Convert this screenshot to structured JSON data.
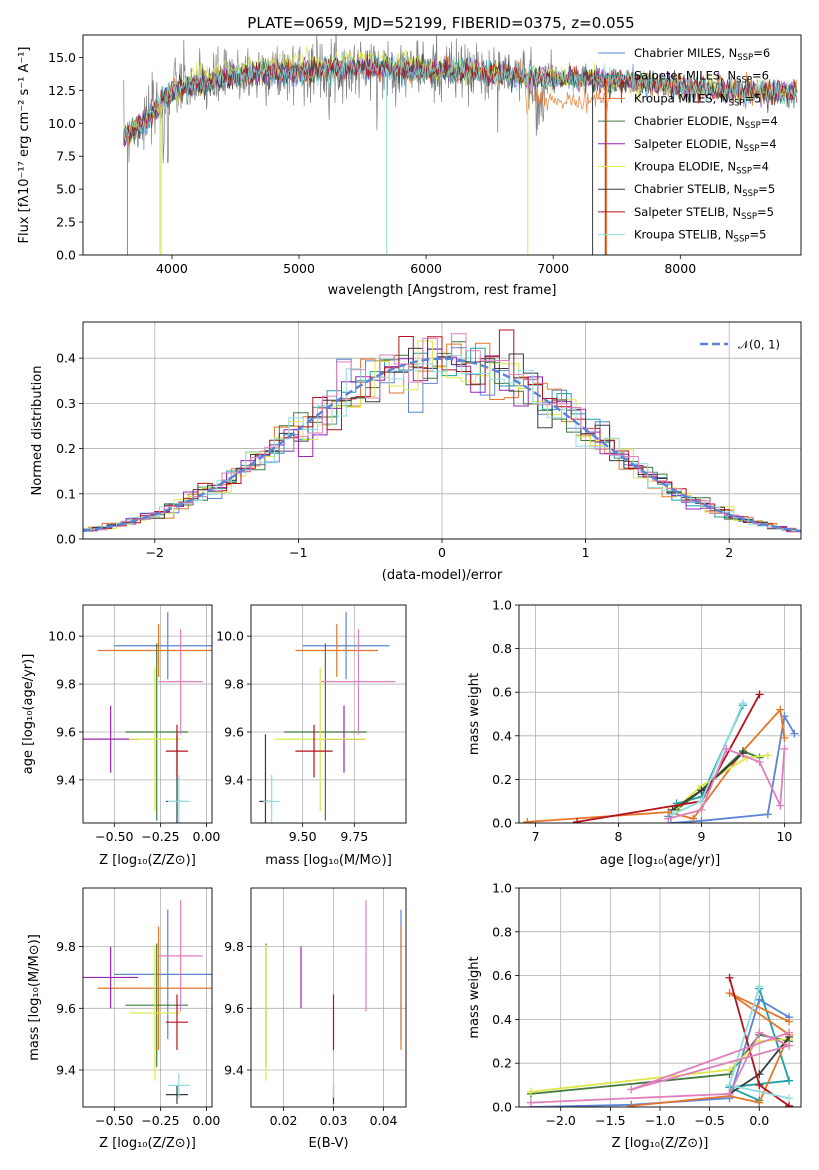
{
  "figure": {
    "title": "PLATE=0659, MJD=52199, FIBERID=0375, z=0.055"
  },
  "models": [
    {
      "name": "Chabrier MILES",
      "nssp": "6",
      "color": "#5b84d6"
    },
    {
      "name": "Salpeter MILES",
      "nssp": "6",
      "color": "#18a1a8"
    },
    {
      "name": "Kroupa MILES",
      "nssp": "5",
      "color": "#e37629"
    },
    {
      "name": "Chabrier ELODIE",
      "nssp": "4",
      "color": "#3f7a3f"
    },
    {
      "name": "Salpeter ELODIE",
      "nssp": "4",
      "color": "#9b25b5"
    },
    {
      "name": "Kroupa ELODIE",
      "nssp": "4",
      "color": "#dce84a"
    },
    {
      "name": "Chabrier STELIB",
      "nssp": "5",
      "color": "#3a3a3a"
    },
    {
      "name": "Salpeter STELIB",
      "nssp": "5",
      "color": "#b5121b"
    },
    {
      "name": "Kroupa STELIB",
      "nssp": "5",
      "color": "#8fdde0"
    }
  ],
  "legend_nssp_prefix": "N",
  "legend_nssp_sub": "SSP",
  "colors": {
    "data": "#808080",
    "gauss": "#5b84d6",
    "pink": "#e07fbc",
    "grid": "#b0b0b0"
  },
  "chart_data": [
    {
      "id": "spectrum",
      "type": "line",
      "xlabel": "wavelength [Angstrom, rest frame]",
      "ylabel": "Flux [fλ10⁻¹⁷ erg cm⁻² s⁻¹ A⁻¹]",
      "xlim": [
        3300,
        8950
      ],
      "ylim": [
        0,
        16.7
      ],
      "xticks": [
        4000,
        5000,
        6000,
        7000,
        8000
      ],
      "yticks": [
        0.0,
        2.5,
        5.0,
        7.5,
        10.0,
        12.5,
        15.0
      ],
      "data_range": [
        3620,
        8920
      ],
      "continuum": [
        [
          3620,
          9.0
        ],
        [
          3800,
          10.2
        ],
        [
          4000,
          12.5
        ],
        [
          4500,
          13.6
        ],
        [
          5000,
          14.0
        ],
        [
          5500,
          14.2
        ],
        [
          6000,
          14.1
        ],
        [
          6500,
          13.8
        ],
        [
          7000,
          13.4
        ],
        [
          7500,
          13.3
        ],
        [
          8000,
          12.7
        ],
        [
          8500,
          12.4
        ],
        [
          8920,
          12.3
        ]
      ]
    },
    {
      "id": "residuals",
      "type": "histogram",
      "xlabel": "(data-model)/error",
      "ylabel": "Normed distribution",
      "xlim": [
        -2.5,
        2.5
      ],
      "ylim": [
        0,
        0.48
      ],
      "xticks": [
        -2,
        -1,
        0,
        1,
        2
      ],
      "yticks": [
        0.0,
        0.1,
        0.2,
        0.3,
        0.4
      ],
      "legend": "𝒩(0, 1)"
    },
    {
      "id": "z-age",
      "type": "scatter",
      "xlabel": "Z [log₁₀(Z/Z⊙)]",
      "ylabel": "age  [log₁₀(age/yr)]",
      "xlim": [
        -0.67,
        0.03
      ],
      "ylim": [
        9.22,
        10.13
      ],
      "xticks": [
        -0.5,
        -0.25,
        0.0
      ],
      "xticklabels": [
        "−0.50",
        "−0.25",
        "0.00"
      ],
      "yticks": [
        9.4,
        9.6,
        9.8,
        10.0
      ]
    },
    {
      "id": "mass-age",
      "type": "scatter",
      "xlabel": "mass [log₁₀(M/M⊙)]",
      "ylabel": "",
      "xlim": [
        9.25,
        10.0
      ],
      "ylim": [
        9.22,
        10.13
      ],
      "xticks": [
        9.5,
        9.75
      ],
      "xticklabels": [
        "9.50",
        "9.75"
      ],
      "yticks": [
        9.4,
        9.6,
        9.8,
        10.0
      ]
    },
    {
      "id": "age-weight",
      "type": "line",
      "xlabel": "age  [log₁₀(age/yr)]",
      "ylabel": "mass weight",
      "xlim": [
        6.8,
        10.2
      ],
      "ylim": [
        0,
        1.0
      ],
      "xticks": [
        7,
        8,
        9,
        10
      ],
      "yticks": [
        0.0,
        0.2,
        0.4,
        0.6,
        0.8,
        1.0
      ]
    },
    {
      "id": "z-mass",
      "type": "scatter",
      "xlabel": "Z [log₁₀(Z/Z⊙)]",
      "ylabel": "mass [log₁₀(M/M⊙)]",
      "xlim": [
        -0.67,
        0.03
      ],
      "ylim": [
        9.28,
        9.99
      ],
      "xticks": [
        -0.5,
        -0.25,
        0.0
      ],
      "xticklabels": [
        "−0.50",
        "−0.25",
        "0.00"
      ],
      "yticks": [
        9.4,
        9.6,
        9.8
      ]
    },
    {
      "id": "ebv-mass",
      "type": "scatter",
      "xlabel": "E(B-V)",
      "ylabel": "",
      "xlim": [
        0.0135,
        0.0445
      ],
      "ylim": [
        9.28,
        9.99
      ],
      "xticks": [
        0.02,
        0.03,
        0.04
      ],
      "xticklabels": [
        "0.02",
        "0.03",
        "0.04"
      ],
      "yticks": [
        9.4,
        9.6,
        9.8
      ]
    },
    {
      "id": "z-weight",
      "type": "line",
      "xlabel": "Z [log₁₀(Z/Z⊙)]",
      "ylabel": "mass weight",
      "xlim": [
        -2.42,
        0.42
      ],
      "ylim": [
        0,
        1.0
      ],
      "xticks": [
        -2.0,
        -1.5,
        -1.0,
        -0.5,
        0.0
      ],
      "xticklabels": [
        "−2.0",
        "−1.5",
        "−1.0",
        "−0.5",
        "0.0"
      ],
      "yticks": [
        0.0,
        0.2,
        0.4,
        0.6,
        0.8,
        1.0
      ]
    }
  ],
  "properties": [
    {
      "model": 0,
      "z": -0.21,
      "zerr": 0.29,
      "age": 9.96,
      "ageErr": 0.14,
      "mass": 9.71,
      "massErr": 0.21,
      "ebv": 0.0435
    },
    {
      "model": 2,
      "z": -0.26,
      "zerr": 0.33,
      "age": 9.94,
      "ageErr": 0.11,
      "mass": 9.665,
      "massErr": 0.2,
      "ebv": 0.0435
    },
    {
      "model": 3,
      "z": -0.27,
      "zerr": 0.17,
      "age": 9.6,
      "ageErr": 0.37,
      "mass": 9.61,
      "massErr": 0.2,
      "ebv": 0.0165
    },
    {
      "model": 4,
      "z": -0.52,
      "zerr": 0.15,
      "age": 9.57,
      "ageErr": 0.14,
      "mass": 9.7,
      "massErr": 0.1,
      "ebv": 0.0235
    },
    {
      "model": 5,
      "z": -0.28,
      "zerr": 0.14,
      "age": 9.57,
      "ageErr": 0.3,
      "mass": 9.585,
      "massErr": 0.22,
      "ebv": 0.0165
    },
    {
      "model": 6,
      "z": -0.16,
      "zerr": 0.06,
      "age": 9.31,
      "ageErr": 0.28,
      "mass": 9.32,
      "massErr": 0.03,
      "ebv": 0.03
    },
    {
      "model": 7,
      "z": -0.16,
      "zerr": 0.06,
      "age": 9.52,
      "ageErr": 0.11,
      "mass": 9.555,
      "massErr": 0.09,
      "ebv": 0.03
    },
    {
      "model": 8,
      "z": -0.15,
      "zerr": 0.06,
      "age": 9.31,
      "ageErr": 0.11,
      "mass": 9.35,
      "massErr": 0.04,
      "ebv": 0.03
    },
    {
      "model": -1,
      "z": -0.14,
      "zerr": 0.12,
      "age": 9.81,
      "ageErr": 0.22,
      "mass": 9.77,
      "massErr": 0.18,
      "ebv": 0.0365
    }
  ],
  "weights": [
    {
      "model": 0,
      "ages": [
        8.63,
        9.0,
        9.8,
        10.0,
        10.12
      ],
      "zs": [
        -2.3,
        -1.29,
        -0.3,
        0.0,
        0.3
      ],
      "ws": [
        0.0,
        0.01,
        0.04,
        0.49,
        0.41
      ]
    },
    {
      "model": 1,
      "ages": [
        8.6,
        8.7,
        9.0,
        9.5
      ],
      "zs": [
        0.0,
        -0.3,
        0.3,
        0.0
      ],
      "ws": [
        0.03,
        0.09,
        0.12,
        0.54
      ]
    },
    {
      "model": 2,
      "ages": [
        6.9,
        8.6,
        8.9,
        9.5,
        9.95,
        10.0
      ],
      "zs": [
        -1.29,
        -0.3,
        0.0,
        0.3,
        -0.3,
        0.3
      ],
      "ws": [
        0.005,
        0.05,
        0.02,
        0.33,
        0.52,
        0.39
      ]
    },
    {
      "model": 3,
      "ages": [
        8.7,
        9.0,
        9.5,
        9.7
      ],
      "zs": [
        -2.3,
        -0.3,
        0.0,
        0.3
      ],
      "ws": [
        0.06,
        0.15,
        0.33,
        0.3
      ]
    },
    {
      "model": 5,
      "ages": [
        8.7,
        9.0,
        9.55,
        9.8
      ],
      "zs": [
        -2.3,
        -0.3,
        0.0,
        0.3
      ],
      "ws": [
        0.07,
        0.17,
        0.3,
        0.31
      ]
    },
    {
      "model": 6,
      "ages": [
        8.65,
        9.0,
        9.5
      ],
      "zs": [
        -0.3,
        0.0,
        0.3
      ],
      "ws": [
        0.06,
        0.15,
        0.32
      ]
    },
    {
      "model": 7,
      "ages": [
        7.5,
        9.0,
        9.7
      ],
      "zs": [
        0.3,
        0.0,
        -0.3
      ],
      "ws": [
        0.005,
        0.1,
        0.59
      ]
    },
    {
      "model": 8,
      "ages": [
        8.65,
        9.0,
        9.5
      ],
      "zs": [
        0.3,
        -0.3,
        0.0
      ],
      "ws": [
        0.04,
        0.1,
        0.55
      ]
    },
    {
      "model": -1,
      "ages": [
        8.6,
        9.0,
        9.3,
        9.7,
        9.95,
        10.0
      ],
      "zs": [
        -2.3,
        -0.3,
        0.0,
        0.3,
        -1.29,
        0.3
      ],
      "ws": [
        0.02,
        0.06,
        0.34,
        0.28,
        0.08,
        0.34
      ]
    }
  ]
}
